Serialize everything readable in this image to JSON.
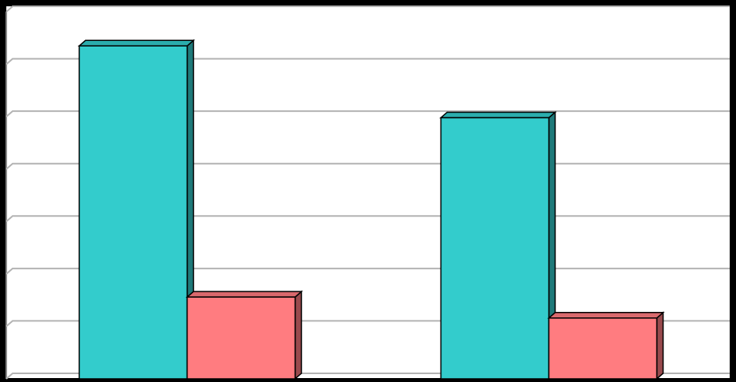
{
  "chart_data": {
    "type": "bar3d",
    "categories": [
      null,
      null
    ],
    "series": [
      {
        "color": "#33cccc",
        "values": [
          6.35,
          4.98
        ]
      },
      {
        "color": "#ff7c80",
        "values": [
          1.56,
          1.16
        ]
      }
    ],
    "ylim": [
      0,
      7
    ],
    "yticks": [
      0,
      1,
      2,
      3,
      4,
      5,
      6,
      7
    ],
    "grid": true
  }
}
